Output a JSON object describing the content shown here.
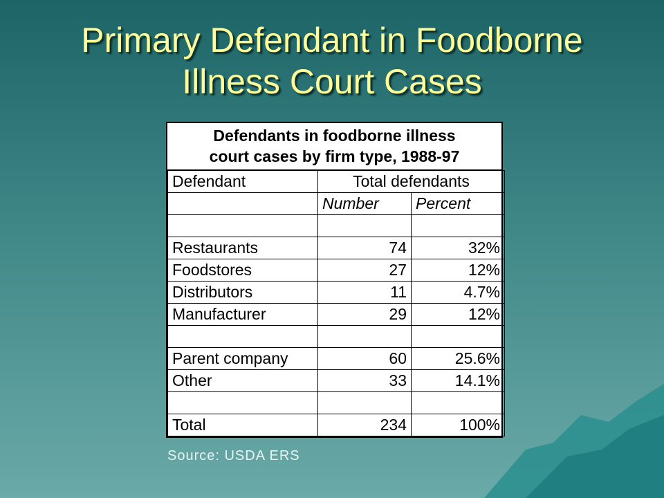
{
  "title": [
    "Primary Defendant in Foodborne",
    "Illness Court Cases"
  ],
  "table": {
    "caption": [
      "Defendants in foodborne illness",
      "court cases by firm type, 1988-97"
    ],
    "header": {
      "defendant": "Defendant",
      "total": "Total defendants",
      "number": "Number",
      "percent": "Percent"
    },
    "groups": [
      [
        {
          "defendant": "Restaurants",
          "number": 74,
          "percent": "32%"
        },
        {
          "defendant": "Foodstores",
          "number": 27,
          "percent": "12%"
        },
        {
          "defendant": "Distributors",
          "number": 11,
          "percent": "4.7%"
        },
        {
          "defendant": "Manufacturer",
          "number": 29,
          "percent": "12%"
        }
      ],
      [
        {
          "defendant": "Parent company",
          "number": 60,
          "percent": "25.6%"
        },
        {
          "defendant": "Other",
          "number": 33,
          "percent": "14.1%"
        }
      ],
      [
        {
          "defendant": "Total",
          "number": 234,
          "percent": "100%"
        }
      ]
    ]
  },
  "source": "Source: USDA ERS"
}
